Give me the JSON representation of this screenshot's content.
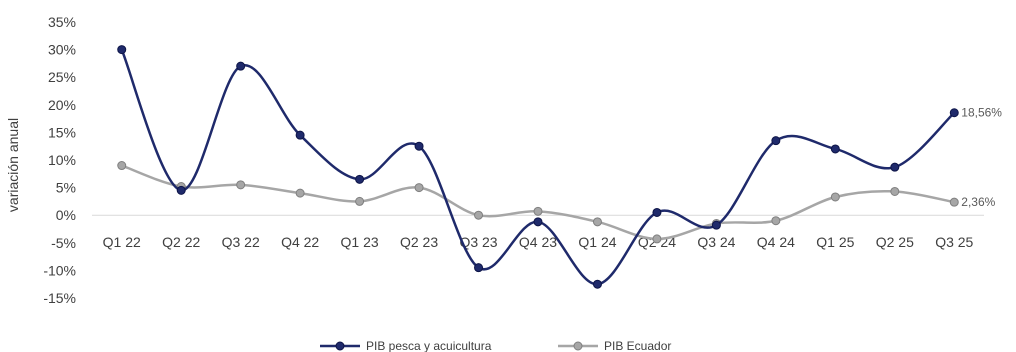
{
  "chart_data": {
    "type": "line",
    "title": "",
    "xlabel": "",
    "ylabel": "variación anual",
    "categories": [
      "Q1 22",
      "Q2 22",
      "Q3 22",
      "Q4 22",
      "Q1 23",
      "Q2 23",
      "Q3 23",
      "Q4 23",
      "Q1 24",
      "Q2 24",
      "Q3 24",
      "Q4 24",
      "Q1 25",
      "Q2 25",
      "Q3 25"
    ],
    "ylim": [
      -15,
      35
    ],
    "yticks": [
      35,
      30,
      25,
      20,
      15,
      10,
      5,
      0,
      -5,
      -10,
      -15
    ],
    "ytick_labels": [
      "35%",
      "30%",
      "25%",
      "20%",
      "15%",
      "10%",
      "5%",
      "0%",
      "-5%",
      "-10%",
      "-15%"
    ],
    "grid": false,
    "smooth": true,
    "legend_position": "bottom",
    "series": [
      {
        "name": "PIB pesca y acuicultura",
        "color": "#1f2a6b",
        "values": [
          30.0,
          4.5,
          27.0,
          14.5,
          6.5,
          12.5,
          -9.5,
          -1.2,
          -12.5,
          0.5,
          -1.8,
          13.5,
          12.0,
          8.7,
          18.56
        ],
        "end_label": "18,56%"
      },
      {
        "name": "PIB Ecuador",
        "color": "#a6a6a6",
        "values": [
          9.0,
          5.2,
          5.5,
          4.0,
          2.5,
          5.0,
          0.0,
          0.7,
          -1.2,
          -4.3,
          -1.5,
          -1.0,
          3.3,
          4.3,
          2.36
        ],
        "end_label": "2,36%"
      }
    ]
  }
}
